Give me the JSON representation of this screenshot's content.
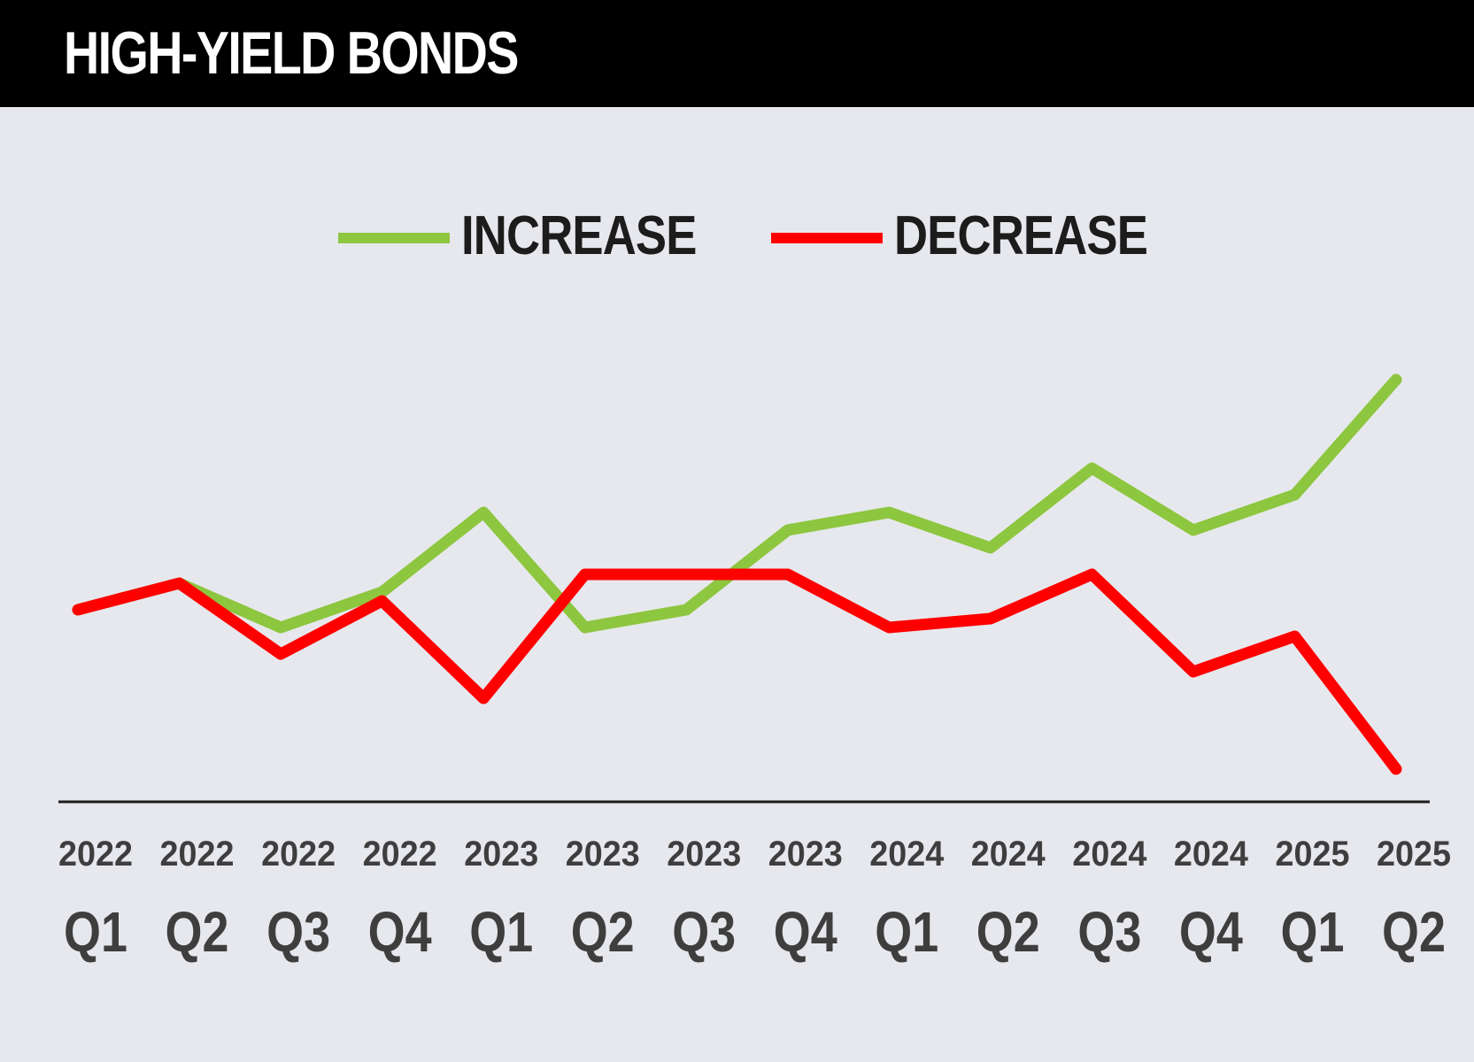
{
  "title": "HIGH-YIELD BONDS",
  "colors": {
    "header_bg": "#000000",
    "background": "#e7e8ed",
    "increase": "#8dc63f",
    "decrease": "#ff0000",
    "axis": "#1c1c1c",
    "tick_text": "#3e3e3e"
  },
  "chart_data": {
    "type": "line",
    "title": "HIGH-YIELD BONDS",
    "xlabel": "",
    "ylabel": "",
    "grid": false,
    "legend_position": "top-center",
    "categories": [
      {
        "year": "2022",
        "quarter": "Q1"
      },
      {
        "year": "2022",
        "quarter": "Q2"
      },
      {
        "year": "2022",
        "quarter": "Q3"
      },
      {
        "year": "2022",
        "quarter": "Q4"
      },
      {
        "year": "2023",
        "quarter": "Q1"
      },
      {
        "year": "2023",
        "quarter": "Q2"
      },
      {
        "year": "2023",
        "quarter": "Q3"
      },
      {
        "year": "2023",
        "quarter": "Q4"
      },
      {
        "year": "2024",
        "quarter": "Q1"
      },
      {
        "year": "2024",
        "quarter": "Q2"
      },
      {
        "year": "2024",
        "quarter": "Q3"
      },
      {
        "year": "2024",
        "quarter": "Q4"
      },
      {
        "year": "2025",
        "quarter": "Q1"
      },
      {
        "year": "2025",
        "quarter": "Q2"
      }
    ],
    "ylim": [
      0,
      100
    ],
    "series": [
      {
        "name": "INCREASE",
        "color": "#8dc63f",
        "values": [
          47,
          50,
          45,
          49,
          58,
          45,
          47,
          56,
          58,
          54,
          63,
          56,
          60,
          73
        ]
      },
      {
        "name": "DECREASE",
        "color": "#ff0000",
        "values": [
          47,
          50,
          42,
          48,
          37,
          51,
          51,
          51,
          45,
          46,
          51,
          40,
          44,
          29
        ]
      }
    ]
  }
}
